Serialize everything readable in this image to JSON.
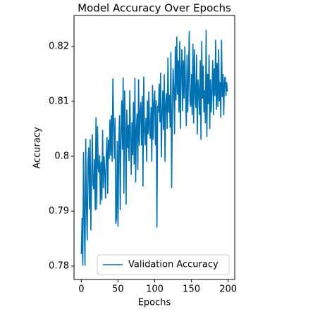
{
  "chart_data": {
    "type": "line",
    "title": "Model Accuracy Over Epochs",
    "xlabel": "Epochs",
    "ylabel": "Accuracy",
    "x": [
      0,
      1,
      2,
      3,
      4,
      5,
      6,
      7,
      8,
      9,
      10,
      11,
      12,
      13,
      14,
      15,
      16,
      17,
      18,
      19,
      20,
      21,
      22,
      23,
      24,
      25,
      26,
      27,
      28,
      29,
      30,
      31,
      32,
      33,
      34,
      35,
      36,
      37,
      38,
      39,
      40,
      41,
      42,
      43,
      44,
      45,
      46,
      47,
      48,
      49,
      50,
      51,
      52,
      53,
      54,
      55,
      56,
      57,
      58,
      59,
      60,
      61,
      62,
      63,
      64,
      65,
      66,
      67,
      68,
      69,
      70,
      71,
      72,
      73,
      74,
      75,
      76,
      77,
      78,
      79,
      80,
      81,
      82,
      83,
      84,
      85,
      86,
      87,
      88,
      89,
      90,
      91,
      92,
      93,
      94,
      95,
      96,
      97,
      98,
      99,
      100,
      101,
      102,
      103,
      104,
      105,
      106,
      107,
      108,
      109,
      110,
      111,
      112,
      113,
      114,
      115,
      116,
      117,
      118,
      119,
      120,
      121,
      122,
      123,
      124,
      125,
      126,
      127,
      128,
      129,
      130,
      131,
      132,
      133,
      134,
      135,
      136,
      137,
      138,
      139,
      140,
      141,
      142,
      143,
      144,
      145,
      146,
      147,
      148,
      149,
      150,
      151,
      152,
      153,
      154,
      155,
      156,
      157,
      158,
      159,
      160,
      161,
      162,
      163,
      164,
      165,
      166,
      167,
      168,
      169,
      170,
      171,
      172,
      173,
      174,
      175,
      176,
      177,
      178,
      179,
      180,
      181,
      182,
      183,
      184,
      185,
      186,
      187,
      188,
      189,
      190,
      191,
      192,
      193,
      194,
      195,
      196,
      197,
      198,
      199
    ],
    "series": [
      {
        "name": "Validation Accuracy",
        "color": "#0072b2",
        "values": [
          0.7822,
          0.7888,
          0.7801,
          0.8008,
          0.7888,
          0.7801,
          0.8032,
          0.7912,
          0.7847,
          0.7985,
          0.8016,
          0.7903,
          0.8031,
          0.7865,
          0.7955,
          0.804,
          0.7948,
          0.794,
          0.7995,
          0.7902,
          0.8071,
          0.7903,
          0.8055,
          0.798,
          0.797,
          0.8002,
          0.7912,
          0.799,
          0.792,
          0.8048,
          0.7942,
          0.8,
          0.7973,
          0.7923,
          0.8002,
          0.8035,
          0.7932,
          0.803,
          0.7995,
          0.8067,
          0.8001,
          0.8075,
          0.799,
          0.8142,
          0.8063,
          0.7995,
          0.807,
          0.7877,
          0.7887,
          0.8028,
          0.7872,
          0.802,
          0.8075,
          0.7902,
          0.804,
          0.8102,
          0.8012,
          0.8143,
          0.7932,
          0.812,
          0.8052,
          0.7912,
          0.8085,
          0.8015,
          0.8057,
          0.7991,
          0.812,
          0.8035,
          0.7966,
          0.8062,
          0.8002,
          0.8099,
          0.7985,
          0.8143,
          0.7952,
          0.805,
          0.8078,
          0.7975,
          0.814,
          0.8019,
          0.808,
          0.8099,
          0.802,
          0.811,
          0.7945,
          0.8145,
          0.805,
          0.802,
          0.807,
          0.799,
          0.8102,
          0.804,
          0.8118,
          0.805,
          0.8032,
          0.809,
          0.799,
          0.813,
          0.803,
          0.81,
          0.812,
          0.802,
          0.8102,
          0.787,
          0.8092,
          0.808,
          0.8132,
          0.8062,
          0.8152,
          0.7998,
          0.808,
          0.812,
          0.8048,
          0.8149,
          0.799,
          0.8098,
          0.8115,
          0.805,
          0.818,
          0.808,
          0.8112,
          0.8052,
          0.819,
          0.7942,
          0.8085,
          0.816,
          0.812,
          0.804,
          0.82,
          0.8102,
          0.8218,
          0.8112,
          0.8175,
          0.808,
          0.821,
          0.805,
          0.816,
          0.8195,
          0.8082,
          0.8175,
          0.8105,
          0.82,
          0.812,
          0.8055,
          0.8185,
          0.808,
          0.8145,
          0.8228,
          0.81,
          0.809,
          0.815,
          0.8075,
          0.8205,
          0.806,
          0.8195,
          0.8112,
          0.8088,
          0.8185,
          0.804,
          0.814,
          0.812,
          0.8075,
          0.8175,
          0.803,
          0.821,
          0.8105,
          0.8165,
          0.808,
          0.812,
          0.806,
          0.823,
          0.8035,
          0.815,
          0.8095,
          0.8185,
          0.805,
          0.814,
          0.808,
          0.812,
          0.8175,
          0.8075,
          0.816,
          0.811,
          0.8212,
          0.8085,
          0.817,
          0.809,
          0.8195,
          0.81,
          0.8135,
          0.807,
          0.8212,
          0.8108,
          0.815,
          0.8075,
          0.814,
          0.8145,
          0.811,
          0.8135,
          0.8118
        ]
      }
    ],
    "xlim": [
      -9.95,
      208.95
    ],
    "ylim": [
      0.77756,
      0.82564
    ],
    "xticks": [
      0,
      50,
      100,
      150,
      200
    ],
    "yticks": [
      0.78,
      0.79,
      0.8,
      0.81,
      0.82
    ],
    "legend": "lower right"
  }
}
